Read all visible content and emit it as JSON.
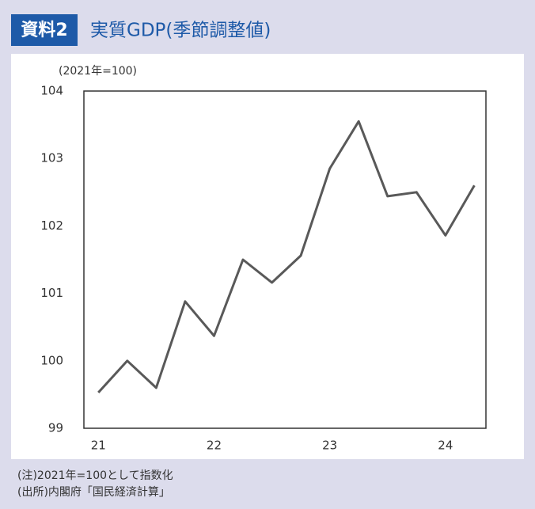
{
  "chart_data": {
    "type": "line",
    "label": "資料2",
    "title": "実質GDP(季節調整値)",
    "y_unit": "(2021年=100)",
    "x": [
      21,
      21.25,
      21.5,
      21.75,
      22,
      22.25,
      22.5,
      22.75,
      23,
      23.25,
      23.5,
      23.75,
      24,
      24.25
    ],
    "values": [
      99.53,
      100.0,
      99.6,
      100.88,
      100.37,
      101.5,
      101.16,
      101.56,
      102.85,
      103.55,
      102.44,
      102.5,
      101.86,
      102.6
    ],
    "color": "#595959",
    "xlim": [
      20.875,
      24.35
    ],
    "xticks": [
      21,
      22,
      23,
      24
    ],
    "ylim": [
      99,
      104
    ],
    "yticks": [
      99,
      100,
      101,
      102,
      103,
      104
    ],
    "grid": false,
    "notes": [
      "(注)2021年=100として指数化",
      "(出所)内閣府「国民経済計算」"
    ]
  }
}
